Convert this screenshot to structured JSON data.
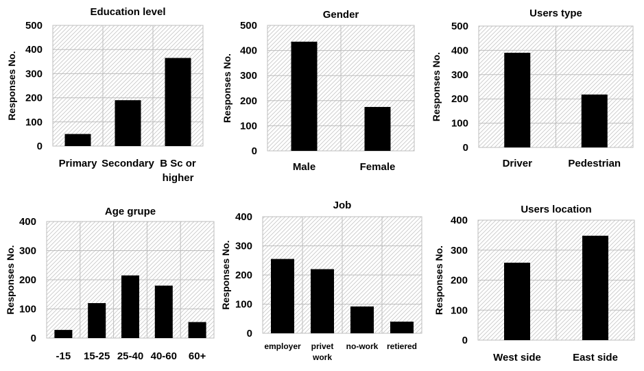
{
  "chart_data": [
    {
      "type": "bar",
      "title": "Education level",
      "ylabel": "Responses No.",
      "categories": [
        [
          "Primary"
        ],
        [
          "Secondary"
        ],
        [
          "B Sc or",
          "higher"
        ]
      ],
      "values": [
        50,
        190,
        365
      ],
      "ylim": [
        0,
        500
      ],
      "yticks": [
        0,
        100,
        200,
        300,
        400,
        500
      ],
      "grid": true,
      "bar_color": "#000000"
    },
    {
      "type": "bar",
      "title": "Gender",
      "ylabel": "Responses No.",
      "categories": [
        [
          "Male"
        ],
        [
          "Female"
        ]
      ],
      "values": [
        435,
        175
      ],
      "ylim": [
        0,
        500
      ],
      "yticks": [
        0,
        100,
        200,
        300,
        400,
        500
      ],
      "grid": true,
      "bar_color": "#000000"
    },
    {
      "type": "bar",
      "title": "Users type",
      "ylabel": "Responses No.",
      "categories": [
        [
          "Driver"
        ],
        [
          "Pedestrian"
        ]
      ],
      "values": [
        390,
        218
      ],
      "ylim": [
        0,
        500
      ],
      "yticks": [
        0,
        100,
        200,
        300,
        400,
        500
      ],
      "grid": true,
      "bar_color": "#000000"
    },
    {
      "type": "bar",
      "title": "Age grupe",
      "ylabel": "Responses No.",
      "categories": [
        [
          "-15"
        ],
        [
          "15-25"
        ],
        [
          "25-40"
        ],
        [
          "40-60"
        ],
        [
          "60+"
        ]
      ],
      "values": [
        28,
        120,
        215,
        180,
        55
      ],
      "ylim": [
        0,
        400
      ],
      "yticks": [
        0,
        100,
        200,
        300,
        400
      ],
      "grid": true,
      "bar_color": "#000000"
    },
    {
      "type": "bar",
      "title": "Job",
      "ylabel": "Responses No.",
      "categories": [
        [
          "employer"
        ],
        [
          "privet",
          "work"
        ],
        [
          "no-work"
        ],
        [
          "retiered"
        ]
      ],
      "values": [
        255,
        220,
        92,
        40
      ],
      "ylim": [
        0,
        400
      ],
      "yticks": [
        0,
        100,
        200,
        300,
        400
      ],
      "grid": true,
      "bar_color": "#000000"
    },
    {
      "type": "bar",
      "title": "Users location",
      "ylabel": "Responses No.",
      "categories": [
        [
          "West side"
        ],
        [
          "East side"
        ]
      ],
      "values": [
        258,
        348
      ],
      "ylim": [
        0,
        400
      ],
      "yticks": [
        0,
        100,
        200,
        300,
        400
      ],
      "grid": true,
      "bar_color": "#000000"
    }
  ]
}
